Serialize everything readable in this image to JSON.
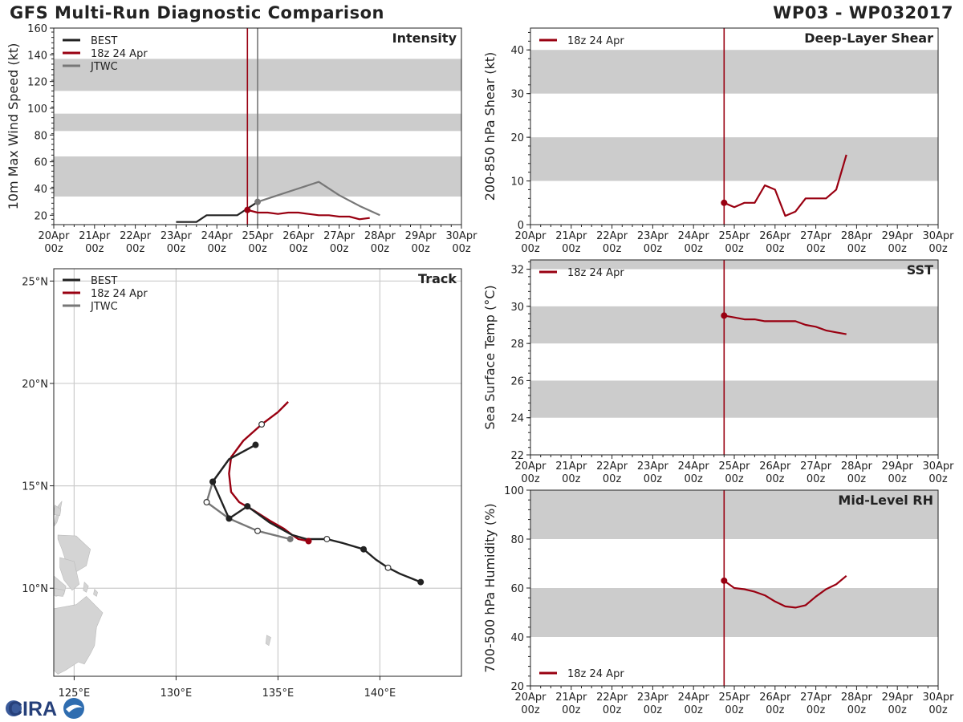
{
  "header": {
    "title": "GFS Multi-Run Diagnostic Comparison",
    "storm": "WP03 - WP032017"
  },
  "logo": {
    "text": "CIRA"
  },
  "colors": {
    "best": "#222222",
    "run": "#990011",
    "jtwc": "#777777",
    "band": "#cccccc",
    "grid": "#cccccc",
    "axis": "#222222"
  },
  "time_ticks": [
    {
      "top": "20Apr",
      "bottom": "00z"
    },
    {
      "top": "21Apr",
      "bottom": "00z"
    },
    {
      "top": "22Apr",
      "bottom": "00z"
    },
    {
      "top": "23Apr",
      "bottom": "00z"
    },
    {
      "top": "24Apr",
      "bottom": "00z"
    },
    {
      "top": "25Apr",
      "bottom": "00z"
    },
    {
      "top": "26Apr",
      "bottom": "00z"
    },
    {
      "top": "27Apr",
      "bottom": "00z"
    },
    {
      "top": "28Apr",
      "bottom": "00z"
    },
    {
      "top": "29Apr",
      "bottom": "00z"
    },
    {
      "top": "30Apr",
      "bottom": "00z"
    }
  ],
  "chart_data": [
    {
      "id": "intensity",
      "type": "line",
      "title": "Intensity",
      "ylabel": "10m Max Wind Speed (kt)",
      "xlabel": "",
      "x_unit": "days since 20Apr 00z",
      "xlim": [
        0,
        10
      ],
      "ylim": [
        13,
        160
      ],
      "yticks": [
        20,
        40,
        60,
        80,
        100,
        120,
        140,
        160
      ],
      "bands": [
        [
          34,
          64
        ],
        [
          83,
          96
        ],
        [
          113,
          137
        ]
      ],
      "vlines": [
        {
          "x": 4.75,
          "series": "run"
        },
        {
          "x": 5.0,
          "series": "jtwc"
        }
      ],
      "legend_position": "top-left",
      "series": [
        {
          "name": "BEST",
          "key": "best",
          "x": [
            3.0,
            3.25,
            3.5,
            3.75,
            4.0,
            4.25,
            4.5,
            4.75,
            5.0
          ],
          "y": [
            15,
            15,
            15,
            20,
            20,
            20,
            20,
            25,
            30
          ],
          "markers": []
        },
        {
          "name": "18z 24 Apr",
          "key": "run",
          "x": [
            4.75,
            5.0,
            5.25,
            5.5,
            5.75,
            6.0,
            6.25,
            6.5,
            6.75,
            7.0,
            7.25,
            7.5,
            7.75
          ],
          "y": [
            24,
            22,
            22,
            21,
            22,
            22,
            21,
            20,
            20,
            19,
            19,
            17,
            18
          ],
          "markers": [
            4.75
          ]
        },
        {
          "name": "JTWC",
          "key": "jtwc",
          "x": [
            5.0,
            5.5,
            6.0,
            6.5,
            7.0,
            7.5,
            8.0
          ],
          "y": [
            30,
            35,
            40,
            45,
            35,
            27,
            20
          ],
          "markers": [
            5.0
          ]
        }
      ]
    },
    {
      "id": "shear",
      "type": "line",
      "title": "Deep-Layer Shear",
      "ylabel": "200-850 hPa Shear (kt)",
      "xlabel": "",
      "x_unit": "days since 20Apr 00z",
      "xlim": [
        0,
        10
      ],
      "ylim": [
        0,
        45
      ],
      "yticks": [
        0,
        10,
        20,
        30,
        40
      ],
      "bands": [
        [
          10,
          20
        ],
        [
          30,
          40
        ]
      ],
      "vlines": [
        {
          "x": 4.75,
          "series": "run"
        }
      ],
      "legend_position": "top-left",
      "series": [
        {
          "name": "18z 24 Apr",
          "key": "run",
          "x": [
            4.75,
            5.0,
            5.25,
            5.5,
            5.75,
            6.0,
            6.25,
            6.5,
            6.75,
            7.0,
            7.25,
            7.5,
            7.75
          ],
          "y": [
            5,
            4,
            5,
            5,
            9,
            8,
            2,
            3,
            6,
            6,
            6,
            8,
            16
          ],
          "markers": [
            4.75
          ]
        }
      ]
    },
    {
      "id": "sst",
      "type": "line",
      "title": "SST",
      "ylabel": "Sea Surface Temp (°C)",
      "xlabel": "",
      "x_unit": "days since 20Apr 00z",
      "xlim": [
        0,
        10
      ],
      "ylim": [
        22,
        32.5
      ],
      "yticks": [
        22,
        24,
        26,
        28,
        30,
        32
      ],
      "bands": [
        [
          24,
          26
        ],
        [
          28,
          30
        ],
        [
          32,
          34
        ]
      ],
      "vlines": [
        {
          "x": 4.75,
          "series": "run"
        }
      ],
      "legend_position": "top-left",
      "series": [
        {
          "name": "18z 24 Apr",
          "key": "run",
          "x": [
            4.75,
            5.0,
            5.25,
            5.5,
            5.75,
            6.0,
            6.25,
            6.5,
            6.75,
            7.0,
            7.25,
            7.5,
            7.75
          ],
          "y": [
            29.5,
            29.4,
            29.3,
            29.3,
            29.2,
            29.2,
            29.2,
            29.2,
            29.0,
            28.9,
            28.7,
            28.6,
            28.5
          ],
          "markers": [
            4.75
          ]
        }
      ]
    },
    {
      "id": "rh",
      "type": "line",
      "title": "Mid-Level RH",
      "ylabel": "700-500 hPa Humidity (%)",
      "xlabel": "",
      "x_unit": "days since 20Apr 00z",
      "xlim": [
        0,
        10
      ],
      "ylim": [
        20,
        100
      ],
      "yticks": [
        20,
        40,
        60,
        80,
        100
      ],
      "bands": [
        [
          40,
          60
        ],
        [
          80,
          100
        ]
      ],
      "vlines": [
        {
          "x": 4.75,
          "series": "run"
        }
      ],
      "legend_position": "bottom-left",
      "series": [
        {
          "name": "18z 24 Apr",
          "key": "run",
          "x": [
            4.75,
            5.0,
            5.25,
            5.5,
            5.75,
            6.0,
            6.25,
            6.5,
            6.75,
            7.0,
            7.25,
            7.5,
            7.75
          ],
          "y": [
            63,
            60,
            59.5,
            58.5,
            57,
            54.5,
            52.5,
            52,
            53,
            56.5,
            59.5,
            61.5,
            65
          ],
          "markers": [
            4.75
          ]
        }
      ]
    },
    {
      "id": "track",
      "type": "scatter",
      "title": "Track",
      "xlabel": "",
      "ylabel": "",
      "xlim": [
        124,
        144
      ],
      "ylim": [
        5.7,
        25.6
      ],
      "xticks": [
        {
          "v": 125,
          "label": "125°E"
        },
        {
          "v": 130,
          "label": "130°E"
        },
        {
          "v": 135,
          "label": "135°E"
        },
        {
          "v": 140,
          "label": "140°E"
        }
      ],
      "yticks": [
        {
          "v": 10,
          "label": "10°N"
        },
        {
          "v": 15,
          "label": "15°N"
        },
        {
          "v": 20,
          "label": "20°N"
        },
        {
          "v": 25,
          "label": "25°N"
        }
      ],
      "legend_position": "top-left",
      "series": [
        {
          "name": "BEST",
          "key": "best",
          "lon": [
            142.0,
            141.0,
            140.4,
            139.8,
            139.2,
            138.2,
            137.4,
            136.4,
            135.7,
            134.6,
            133.5,
            132.6,
            131.8,
            132.6,
            133.9
          ],
          "lat": [
            10.3,
            10.7,
            11.0,
            11.4,
            11.9,
            12.2,
            12.4,
            12.4,
            12.6,
            13.2,
            14.0,
            13.4,
            15.2,
            16.3,
            17.0
          ],
          "closed": [
            0,
            4,
            10,
            11,
            12,
            14
          ],
          "open": [
            2,
            6
          ]
        },
        {
          "name": "18z 24 Apr",
          "key": "run",
          "lon": [
            136.5,
            136.0,
            135.7,
            135.3,
            134.6,
            133.8,
            133.1,
            132.7,
            132.6,
            132.7,
            133.3,
            134.2,
            135.0,
            135.5
          ],
          "lat": [
            12.3,
            12.4,
            12.6,
            12.9,
            13.3,
            13.8,
            14.2,
            14.7,
            15.6,
            16.4,
            17.2,
            18.0,
            18.6,
            19.1
          ],
          "closed": [
            0
          ],
          "open": [
            11
          ]
        },
        {
          "name": "JTWC",
          "key": "jtwc",
          "lon": [
            135.6,
            134.0,
            132.6,
            131.5,
            131.8,
            132.6,
            133.9
          ],
          "lat": [
            12.4,
            12.8,
            13.4,
            14.2,
            15.2,
            16.3,
            17.0
          ],
          "closed": [
            0
          ],
          "open": [
            1,
            3,
            4
          ]
        }
      ],
      "land": [
        {
          "name": "luzon",
          "lon": [
            124.2,
            124.4,
            124.3,
            124.15,
            124.0
          ],
          "lat": [
            14.0,
            14.25,
            13.7,
            13.2,
            13.0
          ]
        },
        {
          "name": "catanduanes",
          "lon": [
            124.05,
            124.35,
            124.3,
            124.0
          ],
          "lat": [
            14.05,
            13.85,
            13.55,
            13.6
          ]
        },
        {
          "name": "samar",
          "lon": [
            124.2,
            125.1,
            125.8,
            125.6,
            125.1,
            124.6,
            124.4,
            124.2
          ],
          "lat": [
            12.6,
            12.55,
            11.9,
            11.1,
            10.8,
            11.3,
            11.9,
            12.4
          ]
        },
        {
          "name": "leyte",
          "lon": [
            124.3,
            125.0,
            125.25,
            124.9,
            124.5,
            124.3
          ],
          "lat": [
            11.5,
            11.3,
            10.2,
            9.9,
            10.4,
            11.0
          ]
        },
        {
          "name": "visayas",
          "lon": [
            124.0,
            124.6,
            124.5,
            124.1,
            124.0
          ],
          "lat": [
            10.6,
            10.1,
            9.7,
            9.6,
            10.0
          ]
        },
        {
          "name": "bohol",
          "lon": [
            124.0,
            124.55,
            124.45,
            124.0
          ],
          "lat": [
            10.0,
            9.9,
            9.6,
            9.65
          ]
        },
        {
          "name": "mindanao",
          "lon": [
            124.0,
            125.1,
            125.6,
            126.4,
            126.1,
            126.0,
            125.8,
            125.5,
            125.2,
            124.6,
            124.2,
            124.0
          ],
          "lat": [
            9.0,
            9.2,
            9.6,
            8.8,
            8.1,
            7.2,
            6.8,
            6.3,
            6.4,
            6.0,
            5.8,
            6.0
          ]
        },
        {
          "name": "dinagat",
          "lon": [
            125.5,
            125.7,
            125.6,
            125.45
          ],
          "lat": [
            10.3,
            10.1,
            9.8,
            9.9
          ]
        },
        {
          "name": "siargao",
          "lon": [
            126.0,
            126.15,
            126.1,
            125.95
          ],
          "lat": [
            9.95,
            9.8,
            9.6,
            9.7
          ]
        },
        {
          "name": "palau",
          "lon": [
            134.45,
            134.65,
            134.55,
            134.4
          ],
          "lat": [
            7.7,
            7.6,
            7.2,
            7.3
          ]
        }
      ]
    }
  ]
}
